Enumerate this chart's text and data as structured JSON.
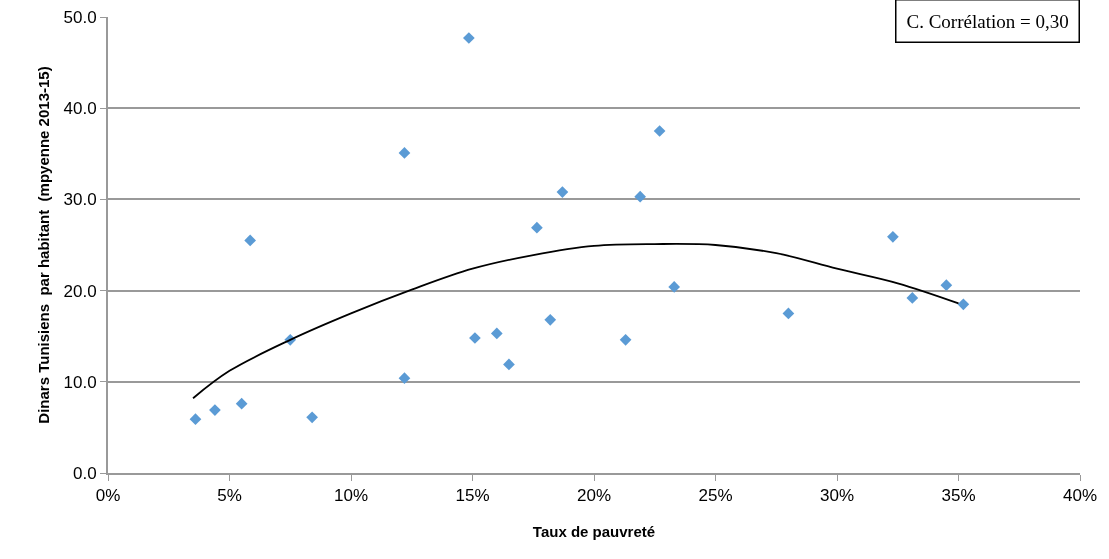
{
  "chart_data": {
    "type": "scatter",
    "xlabel": "Taux de pauvreté",
    "ylabel": "Dinars Tunisiens  par habitant  (mpyenne 2013-15)",
    "annotations": [
      "C. Corrélation = 0,30"
    ],
    "series": [
      {
        "color": "#5b9bd5",
        "marker": "diamond",
        "x": [
          3.6,
          4.4,
          5.5,
          5.85,
          7.5,
          8.4,
          12.2,
          12.2,
          14.85,
          15.1,
          16.0,
          16.5,
          17.65,
          18.2,
          18.7,
          21.3,
          21.9,
          22.7,
          23.3,
          28.0,
          32.3,
          33.1,
          34.5,
          35.2
        ],
        "values": [
          5.9,
          6.9,
          7.6,
          25.5,
          14.6,
          6.1,
          35.1,
          10.4,
          47.7,
          14.8,
          15.3,
          11.9,
          26.9,
          16.8,
          30.8,
          14.6,
          30.3,
          37.5,
          20.4,
          17.5,
          25.9,
          19.2,
          20.6,
          18.5
        ]
      },
      {
        "type": "line",
        "color": "#000000",
        "marker": "none",
        "line_style": "solid",
        "x": [
          3.5,
          5,
          7.5,
          10,
          12.5,
          15,
          17.5,
          20,
          22.5,
          25,
          27.5,
          30,
          32.5,
          35
        ],
        "values": [
          8.2,
          11.2,
          14.6,
          17.5,
          20.1,
          22.4,
          23.9,
          24.9,
          25.1,
          25.0,
          24.1,
          22.4,
          20.8,
          18.6
        ]
      }
    ],
    "xlim": [
      0,
      40
    ],
    "xticks": [
      {
        "value": 0,
        "label": "0%"
      },
      {
        "value": 5,
        "label": "5%"
      },
      {
        "value": 10,
        "label": "10%"
      },
      {
        "value": 15,
        "label": "15%"
      },
      {
        "value": 20,
        "label": "20%"
      },
      {
        "value": 25,
        "label": "25%"
      },
      {
        "value": 30,
        "label": "30%"
      },
      {
        "value": 35,
        "label": "35%"
      },
      {
        "value": 40,
        "label": "40%"
      }
    ],
    "ylim": [
      0,
      50
    ],
    "yticks": [
      {
        "value": 0,
        "label": "0.0"
      },
      {
        "value": 10,
        "label": "10.0"
      },
      {
        "value": 20,
        "label": "20.0"
      },
      {
        "value": 30,
        "label": "30.0"
      },
      {
        "value": 40,
        "label": "40.0"
      },
      {
        "value": 50,
        "label": "50.0"
      }
    ],
    "grid": "y"
  }
}
